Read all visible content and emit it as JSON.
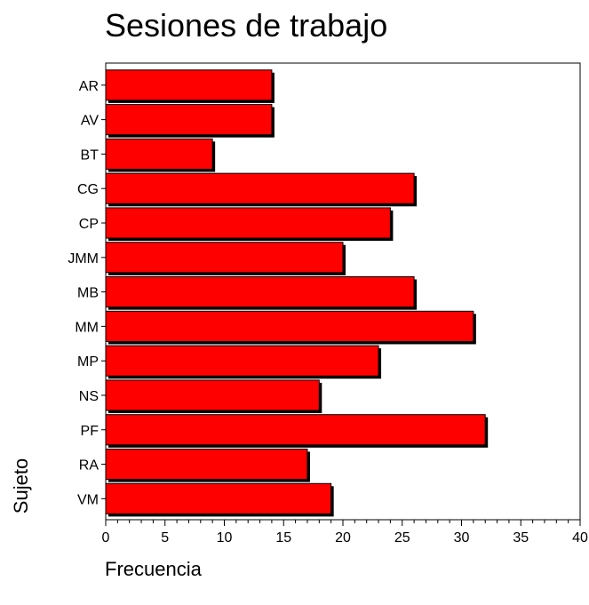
{
  "chart_data": {
    "type": "bar",
    "orientation": "horizontal",
    "title": "Sesiones de trabajo",
    "xlabel": "Frecuencia",
    "ylabel": "Sujeto",
    "categories": [
      "AR",
      "AV",
      "BT",
      "CG",
      "CP",
      "JMM",
      "MB",
      "MM",
      "MP",
      "NS",
      "PF",
      "RA",
      "VM"
    ],
    "values": [
      14,
      14,
      9,
      26,
      24,
      20,
      26,
      31,
      23,
      18,
      32,
      17,
      19
    ],
    "xlim": [
      0,
      40
    ],
    "xticks": [
      0,
      5,
      10,
      15,
      20,
      25,
      30,
      35,
      40
    ],
    "grid": false,
    "legend": "none",
    "bar_color": "#ff0000",
    "bar_shadow_color": "#000000"
  }
}
